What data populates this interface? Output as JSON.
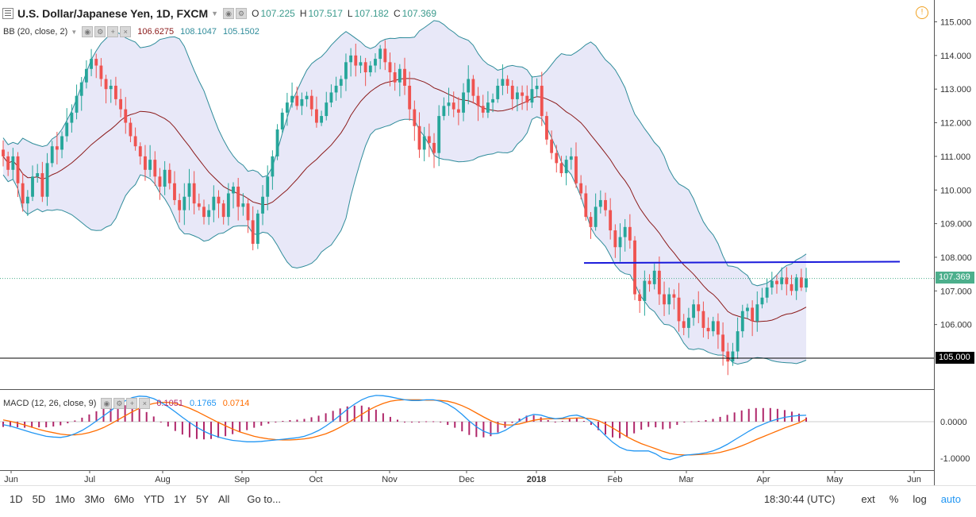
{
  "header": {
    "symbol": "U.S. Dollar/Japanese Yen, 1D, FXCM",
    "o_label": "O",
    "o_value": "107.225",
    "h_label": "H",
    "h_value": "107.517",
    "l_label": "L",
    "l_value": "107.182",
    "c_label": "C",
    "c_value": "107.369"
  },
  "bb_legend": {
    "label": "BB (20, close, 2)",
    "basis": "106.6275",
    "upper": "108.1047",
    "lower": "105.1502"
  },
  "macd_legend": {
    "label": "MACD (12, 26, close, 9)",
    "histogram": "0.1051",
    "macd": "0.1765",
    "signal": "0.0714"
  },
  "price_tags": {
    "last": "107.369",
    "level": "105.000"
  },
  "bottom_bar": {
    "timeframes": [
      "1D",
      "5D",
      "1Mo",
      "3Mo",
      "6Mo",
      "YTD",
      "1Y",
      "5Y",
      "All"
    ],
    "goto": "Go to...",
    "time": "18:30:44 (UTC)",
    "ext": "ext",
    "percent": "%",
    "log": "log",
    "auto": "auto"
  },
  "colors": {
    "up": "#26a69a",
    "down": "#ef5350",
    "band": "#2f8c9a",
    "band_fill": "#e8e8f8",
    "basis": "#8b1a1a",
    "resistance": "#1a1adb",
    "macd": "#2196f3",
    "signal": "#ff6d00",
    "hist": "#b0276a",
    "last_price": "#4caf8c"
  },
  "chart_data": [
    {
      "type": "candlestick",
      "title": "U.S. Dollar/Japanese Yen, 1D, FXCM",
      "x_ticks": [
        "Jun",
        "Jul",
        "Aug",
        "Sep",
        "Oct",
        "Nov",
        "Dec",
        "2018",
        "Feb",
        "Mar",
        "Apr",
        "May",
        "Jun"
      ],
      "y_ticks": [
        "115.000",
        "114.000",
        "113.000",
        "112.000",
        "111.000",
        "110.000",
        "109.000",
        "108.000",
        "107.000",
        "106.000",
        "105.000"
      ],
      "ylim": [
        104.0,
        115.3
      ],
      "close_series": [
        111.0,
        110.6,
        111.0,
        110.2,
        109.6,
        109.8,
        110.4,
        110.5,
        109.8,
        110.8,
        111.3,
        111.2,
        111.6,
        112.0,
        112.3,
        112.8,
        113.2,
        113.6,
        113.9,
        113.7,
        113.3,
        113.0,
        113.1,
        112.7,
        112.4,
        112.0,
        111.6,
        111.3,
        111.0,
        110.6,
        110.9,
        110.4,
        110.1,
        110.6,
        110.2,
        109.7,
        109.4,
        109.8,
        110.2,
        109.6,
        109.5,
        109.2,
        109.4,
        109.8,
        109.6,
        109.2,
        109.9,
        110.1,
        109.5,
        109.6,
        109.1,
        108.4,
        109.3,
        109.8,
        110.4,
        111.0,
        111.8,
        112.3,
        112.6,
        112.8,
        112.5,
        112.7,
        112.8,
        112.4,
        112.0,
        112.2,
        112.6,
        112.9,
        113.1,
        113.3,
        113.8,
        114.0,
        113.7,
        113.8,
        113.5,
        113.7,
        113.9,
        114.2,
        113.8,
        113.5,
        113.2,
        113.6,
        113.1,
        112.4,
        111.9,
        111.2,
        111.6,
        111.4,
        111.1,
        112.2,
        112.5,
        112.6,
        112.4,
        112.3,
        112.9,
        113.3,
        112.8,
        112.5,
        112.3,
        112.6,
        112.7,
        113.1,
        113.3,
        113.1,
        112.7,
        112.9,
        112.8,
        112.6,
        113.0,
        113.1,
        112.2,
        111.5,
        111.1,
        110.8,
        110.5,
        110.9,
        111.0,
        110.2,
        109.9,
        109.2,
        108.9,
        109.5,
        109.7,
        109.4,
        108.8,
        108.3,
        108.6,
        108.9,
        108.5,
        106.9,
        106.7,
        107.3,
        107.2,
        107.6,
        106.9,
        106.6,
        106.9,
        106.8,
        106.1,
        105.9,
        106.2,
        106.6,
        106.4,
        105.9,
        105.8,
        106.1,
        105.7,
        105.2,
        104.9,
        105.2,
        105.8,
        106.4,
        106.5,
        106.1,
        106.6,
        106.8,
        107.1,
        107.3,
        107.2,
        107.4,
        107.2,
        107.0,
        107.4,
        107.1,
        107.369
      ]
    },
    {
      "type": "line",
      "title": "MACD (12, 26, close, 9)",
      "y_ticks": [
        "0.0000",
        "-1.0000"
      ],
      "ylim": [
        -1.35,
        0.75
      ],
      "series": [
        {
          "name": "MACD",
          "values": [
            -0.08,
            -0.12,
            -0.18,
            -0.24,
            -0.3,
            -0.35,
            -0.4,
            -0.42,
            -0.43,
            -0.4,
            -0.33,
            -0.24,
            -0.12,
            0.02,
            0.16,
            0.3,
            0.45,
            0.57,
            0.66,
            0.7,
            0.69,
            0.63,
            0.53,
            0.41,
            0.27,
            0.12,
            -0.02,
            -0.15,
            -0.26,
            -0.35,
            -0.42,
            -0.47,
            -0.51,
            -0.53,
            -0.55,
            -0.55,
            -0.54,
            -0.52,
            -0.5,
            -0.48,
            -0.46,
            -0.44,
            -0.4,
            -0.33,
            -0.24,
            -0.12,
            0.02,
            0.18,
            0.34,
            0.48,
            0.6,
            0.68,
            0.72,
            0.71,
            0.68,
            0.64,
            0.6,
            0.58,
            0.58,
            0.6,
            0.6,
            0.56,
            0.48,
            0.36,
            0.2,
            0.02,
            -0.14,
            -0.26,
            -0.33,
            -0.32,
            -0.24,
            -0.12,
            0.02,
            0.14,
            0.2,
            0.18,
            0.12,
            0.08,
            0.1,
            0.16,
            0.18,
            0.12,
            0.0,
            -0.18,
            -0.38,
            -0.56,
            -0.7,
            -0.78,
            -0.8,
            -0.8,
            -0.8,
            -0.88,
            -1.0,
            -1.04,
            -0.98,
            -0.92,
            -0.9,
            -0.88,
            -0.85,
            -0.8,
            -0.72,
            -0.62,
            -0.5,
            -0.38,
            -0.26,
            -0.15,
            -0.07,
            0.01,
            0.07,
            0.12,
            0.15,
            0.17,
            0.1765
          ]
        },
        {
          "name": "Signal",
          "values": [
            0.05,
            0.01,
            -0.04,
            -0.09,
            -0.15,
            -0.21,
            -0.26,
            -0.3,
            -0.34,
            -0.36,
            -0.36,
            -0.34,
            -0.3,
            -0.24,
            -0.16,
            -0.06,
            0.05,
            0.16,
            0.27,
            0.37,
            0.45,
            0.5,
            0.53,
            0.53,
            0.5,
            0.44,
            0.37,
            0.28,
            0.18,
            0.08,
            -0.02,
            -0.11,
            -0.2,
            -0.28,
            -0.34,
            -0.4,
            -0.44,
            -0.47,
            -0.49,
            -0.5,
            -0.5,
            -0.49,
            -0.47,
            -0.44,
            -0.39,
            -0.33,
            -0.25,
            -0.15,
            -0.04,
            0.08,
            0.2,
            0.32,
            0.42,
            0.5,
            0.56,
            0.59,
            0.6,
            0.6,
            0.6,
            0.59,
            0.59,
            0.58,
            0.56,
            0.51,
            0.44,
            0.35,
            0.24,
            0.13,
            0.03,
            -0.05,
            -0.09,
            -0.09,
            -0.06,
            -0.01,
            0.04,
            0.07,
            0.08,
            0.08,
            0.08,
            0.09,
            0.1,
            0.1,
            0.08,
            0.03,
            -0.06,
            -0.17,
            -0.29,
            -0.41,
            -0.51,
            -0.6,
            -0.67,
            -0.74,
            -0.81,
            -0.87,
            -0.9,
            -0.91,
            -0.91,
            -0.9,
            -0.89,
            -0.87,
            -0.84,
            -0.79,
            -0.73,
            -0.66,
            -0.58,
            -0.49,
            -0.41,
            -0.33,
            -0.25,
            -0.17,
            -0.1,
            -0.03,
            0.0714
          ]
        }
      ]
    }
  ]
}
